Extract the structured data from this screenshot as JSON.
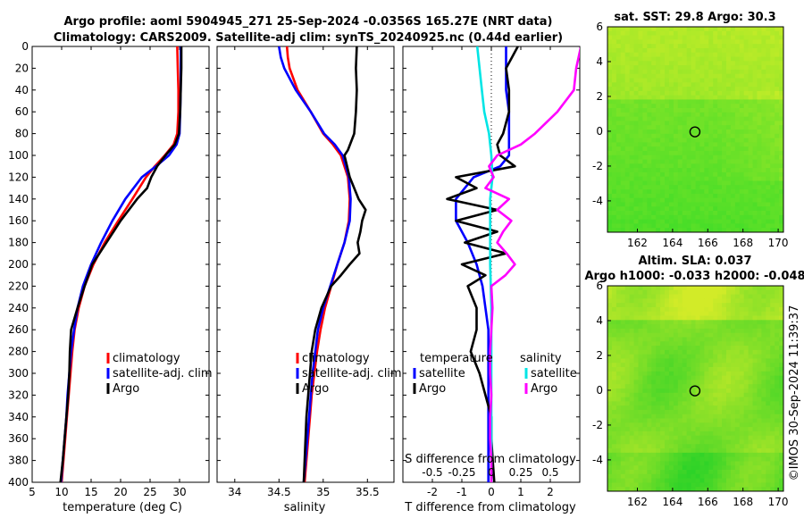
{
  "header": {
    "line1": "Argo profile: aoml 5904945_271 25-Sep-2024 -0.0356S 165.27E (NRT data)",
    "line2": "Climatology: CARS2009. Satellite-adj clim: synTS_20240925.nc (0.44d earlier)"
  },
  "colors": {
    "climatology": "#ff0000",
    "satellite": "#0000ff",
    "argo": "#000000",
    "sat_salinity": "#00e5e5",
    "argo_salinity": "#ff00ff"
  },
  "chart_data": [
    {
      "id": "temperature",
      "type": "line",
      "xlabel": "temperature (deg C)",
      "ylabel": "",
      "xlim": [
        5,
        35
      ],
      "ylim": [
        400,
        0
      ],
      "xticks": [
        "5",
        "10",
        "15",
        "20",
        "25",
        "30"
      ],
      "yticks": [
        "0",
        "20",
        "40",
        "60",
        "80",
        "100",
        "120",
        "140",
        "160",
        "180",
        "200",
        "220",
        "240",
        "260",
        "280",
        "300",
        "320",
        "340",
        "360",
        "380",
        "400"
      ],
      "legend": [
        "climatology",
        "satellite-adj. clim",
        "Argo"
      ],
      "series": [
        {
          "name": "climatology",
          "color": "#ff0000",
          "depth": [
            0,
            20,
            40,
            60,
            80,
            90,
            100,
            110,
            120,
            140,
            160,
            180,
            200,
            220,
            240,
            260,
            280,
            300,
            320,
            340,
            360,
            380,
            400
          ],
          "values": [
            29.6,
            29.7,
            29.8,
            29.8,
            29.6,
            29.0,
            27.5,
            25.8,
            24.3,
            22.0,
            19.6,
            17.3,
            15.4,
            13.9,
            12.9,
            12.2,
            11.8,
            11.5,
            11.2,
            10.9,
            10.6,
            10.3,
            10.0
          ]
        },
        {
          "name": "satellite",
          "color": "#0000ff",
          "depth": [
            0,
            20,
            40,
            60,
            80,
            90,
            100,
            110,
            120,
            140,
            160,
            180,
            200,
            220,
            240,
            260,
            280,
            300,
            320,
            340,
            360,
            380,
            400
          ],
          "values": [
            30.2,
            30.2,
            30.2,
            30.1,
            30.0,
            29.5,
            28.2,
            26.0,
            23.6,
            20.8,
            18.6,
            16.7,
            15.0,
            13.6,
            12.7,
            12.1,
            11.6,
            11.3,
            11.0,
            10.8,
            10.5,
            10.2,
            9.9
          ]
        },
        {
          "name": "Argo",
          "color": "#000000",
          "depth": [
            0,
            20,
            40,
            60,
            80,
            90,
            100,
            110,
            120,
            130,
            140,
            160,
            180,
            200,
            220,
            240,
            260,
            280,
            300,
            320,
            340,
            360,
            380,
            400
          ],
          "values": [
            30.3,
            30.3,
            30.2,
            30.1,
            29.9,
            29.2,
            27.6,
            26.2,
            25.2,
            24.5,
            22.8,
            20.0,
            17.6,
            15.2,
            13.9,
            12.7,
            11.6,
            11.4,
            11.3,
            11.1,
            10.8,
            10.5,
            10.2,
            9.8
          ]
        }
      ]
    },
    {
      "id": "salinity",
      "type": "line",
      "xlabel": "salinity",
      "ylabel": "",
      "xlim": [
        33.8,
        35.8
      ],
      "ylim": [
        400,
        0
      ],
      "xticks": [
        "34",
        "34.5",
        "35",
        "35.5"
      ],
      "legend": [
        "climatology",
        "satellite-adj. clim",
        "Argo"
      ],
      "series": [
        {
          "name": "climatology",
          "color": "#ff0000",
          "depth": [
            0,
            10,
            20,
            40,
            60,
            80,
            90,
            100,
            120,
            140,
            160,
            180,
            200,
            220,
            240,
            260,
            280,
            300,
            320,
            340,
            360,
            380,
            400
          ],
          "values": [
            34.59,
            34.6,
            34.62,
            34.71,
            34.86,
            35.0,
            35.11,
            35.2,
            35.28,
            35.3,
            35.29,
            35.24,
            35.16,
            35.09,
            35.02,
            34.97,
            34.93,
            34.9,
            34.87,
            34.85,
            34.83,
            34.81,
            34.79
          ]
        },
        {
          "name": "satellite",
          "color": "#0000ff",
          "depth": [
            0,
            10,
            20,
            40,
            60,
            80,
            90,
            100,
            120,
            140,
            160,
            180,
            200,
            220,
            240,
            260,
            280,
            300,
            320,
            340,
            360,
            380,
            400
          ],
          "values": [
            34.5,
            34.52,
            34.56,
            34.69,
            34.86,
            35.01,
            35.13,
            35.22,
            35.29,
            35.31,
            35.3,
            35.24,
            35.16,
            35.08,
            35.0,
            34.94,
            34.91,
            34.88,
            34.86,
            34.84,
            34.82,
            34.8,
            34.78
          ]
        },
        {
          "name": "Argo",
          "color": "#000000",
          "depth": [
            0,
            20,
            40,
            60,
            80,
            95,
            100,
            120,
            140,
            150,
            160,
            170,
            180,
            190,
            200,
            210,
            220,
            240,
            260,
            280,
            300,
            320,
            340,
            360,
            380,
            400
          ],
          "values": [
            35.38,
            35.37,
            35.38,
            35.37,
            35.35,
            35.28,
            35.24,
            35.3,
            35.4,
            35.48,
            35.44,
            35.42,
            35.39,
            35.41,
            35.3,
            35.2,
            35.09,
            34.98,
            34.91,
            34.87,
            34.85,
            34.83,
            34.81,
            34.8,
            34.79,
            34.78
          ]
        }
      ]
    },
    {
      "id": "difference",
      "type": "line",
      "xlabel": "T difference from climatology",
      "xlabel_top": "S difference from climatology",
      "xlim": [
        -3,
        3
      ],
      "ylim": [
        400,
        0
      ],
      "xticks": [
        "-2",
        "-1",
        "0",
        "1",
        "2"
      ],
      "xticks_top": [
        "-0.5",
        "-0.25",
        "0",
        "0.25",
        "0.5"
      ],
      "legend_temperature_title": "temperature",
      "legend_salinity_title": "salinity",
      "legend_temperature": [
        "satellite",
        "Argo"
      ],
      "legend_salinity": [
        "satellite",
        "Argo"
      ],
      "series": [
        {
          "name": "T satellite",
          "color": "#0000ff",
          "depth": [
            0,
            20,
            40,
            60,
            80,
            90,
            100,
            110,
            120,
            140,
            160,
            180,
            200,
            220,
            240,
            260,
            280,
            300,
            320,
            340,
            360,
            380,
            400
          ],
          "values": [
            0.5,
            0.5,
            0.5,
            0.6,
            0.6,
            0.6,
            0.6,
            0.3,
            -0.6,
            -1.2,
            -1.2,
            -0.8,
            -0.5,
            -0.3,
            -0.2,
            -0.1,
            -0.1,
            -0.1,
            -0.1,
            -0.1,
            -0.1,
            -0.1,
            -0.1
          ]
        },
        {
          "name": "T Argo",
          "color": "#000000",
          "depth": [
            0,
            10,
            20,
            40,
            60,
            80,
            90,
            100,
            110,
            120,
            130,
            140,
            150,
            160,
            170,
            180,
            190,
            200,
            210,
            220,
            240,
            260,
            280,
            300,
            320,
            340,
            360,
            380,
            400
          ],
          "values": [
            0.9,
            0.7,
            0.5,
            0.6,
            0.6,
            0.4,
            0.2,
            0.3,
            0.8,
            -1.2,
            -0.5,
            -1.5,
            0.2,
            -1.2,
            0.2,
            -0.9,
            0.5,
            -1.0,
            -0.2,
            -0.8,
            -0.5,
            -0.5,
            -0.7,
            -0.4,
            -0.2,
            0.0,
            0.0,
            0.05,
            0.1
          ]
        },
        {
          "name": "S satellite",
          "color": "#00e5e5",
          "depth": [
            0,
            20,
            40,
            60,
            80,
            100,
            120,
            140,
            160,
            200,
            240,
            280,
            320,
            360,
            400
          ],
          "values": [
            -0.12,
            -0.1,
            -0.08,
            -0.06,
            -0.02,
            0.0,
            0.01,
            -0.01,
            -0.01,
            -0.01,
            0.0,
            0.0,
            0.0,
            0.0,
            0.0
          ]
        },
        {
          "name": "S Argo",
          "color": "#ff00ff",
          "depth": [
            0,
            20,
            40,
            60,
            80,
            90,
            100,
            110,
            120,
            130,
            140,
            150,
            160,
            170,
            180,
            190,
            200,
            210,
            220,
            240,
            260,
            280,
            300,
            320,
            340,
            360,
            380,
            400
          ],
          "values": [
            0.76,
            0.72,
            0.7,
            0.56,
            0.37,
            0.25,
            0.05,
            -0.02,
            0.02,
            -0.05,
            0.15,
            0.05,
            0.17,
            0.1,
            0.05,
            0.13,
            0.2,
            0.12,
            0.0,
            0.01,
            0.0,
            -0.01,
            -0.01,
            0.0,
            -0.01,
            -0.01,
            0.0,
            0.0
          ]
        }
      ]
    },
    {
      "id": "sst_map",
      "type": "heatmap",
      "title": "sat. SST: 29.8 Argo: 30.3",
      "xlim": [
        160.3,
        170.3
      ],
      "ylim": [
        -5.8,
        6
      ],
      "xticks": [
        "162",
        "164",
        "166",
        "168",
        "170"
      ],
      "yticks": [
        "6",
        "4",
        "2",
        "0",
        "-2",
        "-4"
      ],
      "marker": {
        "lon": 165.27,
        "lat": -0.0356
      }
    },
    {
      "id": "sla_map",
      "type": "heatmap",
      "title": "Altim. SLA: 0.037",
      "subtitle": "Argo h1000: -0.033 h2000: -0.048",
      "xlim": [
        160.3,
        170.3
      ],
      "ylim": [
        -5.8,
        6
      ],
      "xticks": [
        "162",
        "164",
        "166",
        "168",
        "170"
      ],
      "yticks": [
        "6",
        "4",
        "2",
        "0",
        "-2",
        "-4"
      ],
      "marker": {
        "lon": 165.27,
        "lat": -0.0356
      }
    }
  ],
  "footer": {
    "stamp": "©IMOS 30-Sep-2024 11:39:37"
  }
}
